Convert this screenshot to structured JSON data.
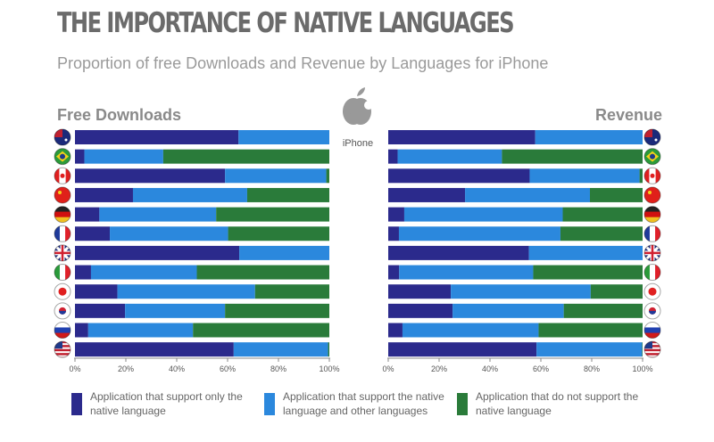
{
  "title": "THE IMPORTANCE OF NATIVE LANGUAGES",
  "subtitle": "Proportion of free Downloads and Revenue by Languages for iPhone",
  "center": {
    "icon": "apple-logo-icon",
    "label": "iPhone"
  },
  "colors": {
    "only_native": "#2b2a8c",
    "native_and_other": "#2b88dd",
    "not_native": "#2a7b3a"
  },
  "legend": [
    {
      "label_line1": "Application that support only the",
      "label_line2": "native language",
      "color": "#2b2a8c"
    },
    {
      "label_line1": "Application that support the native",
      "label_line2": "language and other languages",
      "color": "#2b88dd"
    },
    {
      "label_line1": "Application that do not support the",
      "label_line2": "native language",
      "color": "#2a7b3a"
    }
  ],
  "chart_data": [
    {
      "type": "bar",
      "stacked": true,
      "orientation": "horizontal",
      "title": "Free Downloads",
      "categories": [
        "australia-flag-icon",
        "brazil-flag-icon",
        "canada-flag-icon",
        "china-flag-icon",
        "germany-flag-icon",
        "france-flag-icon",
        "uk-flag-icon",
        "italy-flag-icon",
        "japan-flag-icon",
        "south-korea-flag-icon",
        "russia-flag-icon",
        "usa-flag-icon"
      ],
      "xlim": [
        0,
        100
      ],
      "xticks": [
        "0%",
        "20%",
        "40%",
        "60%",
        "80%",
        "100%"
      ],
      "series": [
        {
          "name": "Application that support only the native language",
          "values": [
            64.3,
            3.7,
            59,
            22.8,
            9.6,
            13.7,
            64.6,
            6.3,
            16.7,
            19.7,
            5.2,
            62.4
          ]
        },
        {
          "name": "Application that support the native language and other languages",
          "values": [
            35.7,
            31,
            39.8,
            44.9,
            45.9,
            46.5,
            35.4,
            41.6,
            54.1,
            39.3,
            41.2,
            37.1
          ]
        },
        {
          "name": "Application that do not support the native language",
          "values": [
            0,
            65.3,
            1.2,
            32.3,
            44.5,
            39.8,
            0,
            52.1,
            29.2,
            41,
            53.6,
            0.5
          ]
        }
      ]
    },
    {
      "type": "bar",
      "stacked": true,
      "orientation": "horizontal",
      "title": "Revenue",
      "categories": [
        "australia-flag-icon",
        "brazil-flag-icon",
        "canada-flag-icon",
        "china-flag-icon",
        "germany-flag-icon",
        "france-flag-icon",
        "uk-flag-icon",
        "italy-flag-icon",
        "japan-flag-icon",
        "south-korea-flag-icon",
        "russia-flag-icon",
        "usa-flag-icon"
      ],
      "xlim": [
        0,
        100
      ],
      "xticks": [
        "0%",
        "20%",
        "40%",
        "60%",
        "80%",
        "100%"
      ],
      "series": [
        {
          "name": "Application that support only the native language",
          "values": [
            57.8,
            3.7,
            55.6,
            30.2,
            6.3,
            4.2,
            55.3,
            4.3,
            24.6,
            25.3,
            5.6,
            58.3
          ]
        },
        {
          "name": "Application that support the native language and other languages",
          "values": [
            42.2,
            41,
            43.2,
            49.1,
            62.3,
            63.5,
            44.7,
            52.7,
            55,
            43.7,
            53.5,
            41.5
          ]
        },
        {
          "name": "Application that do not support the native language",
          "values": [
            0,
            55.3,
            1.2,
            20.7,
            31.4,
            32.3,
            0,
            43,
            20.4,
            31,
            40.9,
            0.2
          ]
        }
      ]
    }
  ]
}
